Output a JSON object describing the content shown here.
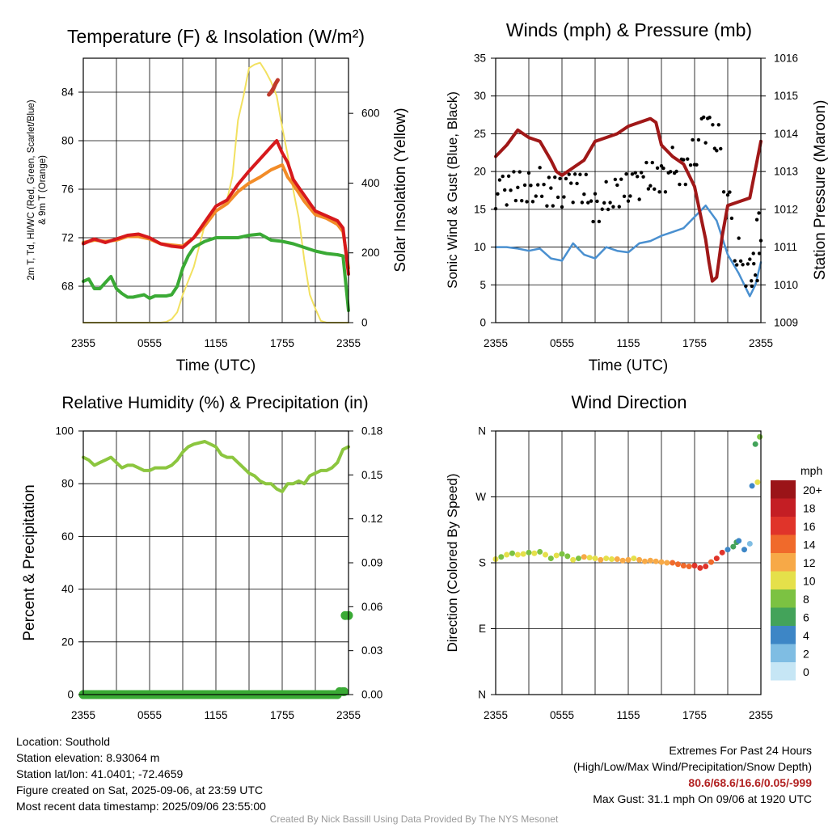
{
  "colors": {
    "t2m": "#d7191c",
    "dewpoint": "#3aaa35",
    "heat_index": "#c0392b",
    "t9m": "#f28c28",
    "solar": "#f2e160",
    "wind": "#4a90d0",
    "gust": "#000000",
    "pressure": "#a01818",
    "rh": "#8cc63f",
    "precip": "#3aaa35"
  },
  "chart_data": [
    {
      "id": "temp",
      "type": "line",
      "title": "Temperature (F) & Insolation (W/m²)",
      "xlabel": "Time (UTC)",
      "ylabel": "2m T, T_d, HI/WC (Red, Green, Scarlet/Blue) & 9m T (Orange)",
      "ylabel_lines": [
        "2m T, Td, HI/WC (Red, Green, Scarlet/Blue)",
        "& 9m T (Orange)"
      ],
      "ylabel_right": "Solar Insolation (Yellow)",
      "x_ticks": [
        "2355",
        "0555",
        "1155",
        "1755",
        "2355"
      ],
      "xlim": [
        0,
        24
      ],
      "ylim": [
        65,
        86.8
      ],
      "y_ticks": [
        68,
        72,
        76,
        80,
        84
      ],
      "ylim_right": [
        0,
        758
      ],
      "y_ticks_right": [
        0,
        200,
        400,
        600
      ],
      "series": [
        {
          "key": "solar",
          "axis": "right",
          "x": [
            0,
            7,
            7.5,
            8,
            8.5,
            9,
            10,
            10.5,
            11,
            11.5,
            12,
            12.5,
            13,
            13.5,
            14,
            14.5,
            15,
            15.5,
            16,
            16.5,
            17,
            17.5,
            18,
            18.5,
            19,
            19.5,
            20,
            20.5,
            21,
            21.5,
            22,
            24
          ],
          "y": [
            0,
            0,
            2,
            10,
            30,
            80,
            160,
            220,
            280,
            300,
            320,
            330,
            350,
            420,
            580,
            650,
            730,
            740,
            745,
            720,
            690,
            650,
            560,
            480,
            380,
            300,
            180,
            80,
            40,
            5,
            0,
            0
          ]
        },
        {
          "key": "t9m",
          "axis": "left",
          "x": [
            0,
            1,
            2,
            3,
            4,
            5,
            6,
            7,
            8,
            9,
            10,
            11,
            12,
            13,
            14,
            15,
            16,
            17,
            18,
            18.5,
            19,
            20,
            21,
            22,
            23,
            23.5,
            24
          ],
          "y": [
            71.6,
            71.8,
            71.7,
            71.8,
            72.1,
            72.1,
            71.9,
            71.5,
            71.4,
            71.3,
            72,
            73,
            74.2,
            74.8,
            75.8,
            76.5,
            77,
            77.6,
            78,
            77,
            76.4,
            75,
            73.9,
            73.6,
            73.1,
            72.5,
            69.5
          ]
        },
        {
          "key": "t2m",
          "axis": "left",
          "x": [
            0,
            1,
            2,
            3,
            4,
            5,
            6,
            7,
            8,
            9,
            10,
            11,
            12,
            13,
            14,
            15,
            16,
            16.5,
            17,
            17.5,
            18,
            18.5,
            19,
            20,
            21,
            22,
            23,
            23.5,
            24
          ],
          "y": [
            71.5,
            71.9,
            71.6,
            71.9,
            72.2,
            72.3,
            72,
            71.5,
            71.3,
            71.2,
            72,
            73.3,
            74.6,
            75.1,
            76.4,
            77.5,
            78.5,
            79,
            79.5,
            80,
            79,
            78.2,
            76.8,
            75.5,
            74.2,
            73.8,
            73.4,
            72.8,
            69
          ]
        },
        {
          "key": "heat_index",
          "axis": "left",
          "x": [
            16.8,
            17,
            17.2,
            17.4,
            17.6
          ],
          "y": [
            83.8,
            84,
            84.3,
            84.7,
            85
          ]
        },
        {
          "key": "dewpoint",
          "axis": "left",
          "x": [
            0,
            0.5,
            1,
            1.5,
            2,
            2.5,
            3,
            3.5,
            4,
            4.5,
            5,
            5.5,
            6,
            6.5,
            7,
            7.5,
            8,
            8.5,
            9,
            9.5,
            10,
            11,
            12,
            13,
            14,
            15,
            16,
            17,
            18,
            19,
            20,
            21,
            22,
            23,
            23.5,
            24
          ],
          "y": [
            68.4,
            68.6,
            67.8,
            67.8,
            68.3,
            68.8,
            67.8,
            67.4,
            67.1,
            67.1,
            67.2,
            67.3,
            67,
            67.2,
            67.2,
            67.2,
            67.3,
            68,
            69.5,
            70.5,
            71.2,
            71.7,
            72,
            72,
            72,
            72.2,
            72.3,
            71.8,
            71.7,
            71.5,
            71.2,
            70.9,
            70.7,
            70.6,
            70.5,
            66
          ]
        }
      ]
    },
    {
      "id": "wind",
      "type": "line",
      "title": "Winds (mph) & Pressure (mb)",
      "xlabel": "Time (UTC)",
      "ylabel": "Sonic Wind & Gust (Blue, Black)",
      "ylabel_right": "Station Pressure (Maroon)",
      "x_ticks": [
        "2355",
        "0555",
        "1155",
        "1755",
        "2355"
      ],
      "xlim": [
        0,
        24
      ],
      "ylim": [
        0,
        35
      ],
      "y_ticks": [
        0,
        5,
        10,
        15,
        20,
        25,
        30,
        35
      ],
      "ylim_right": [
        1009,
        1016
      ],
      "y_ticks_right": [
        1009,
        1010,
        1011,
        1012,
        1013,
        1014,
        1015,
        1016
      ],
      "series": [
        {
          "key": "wind",
          "axis": "left",
          "x": [
            0,
            1,
            2,
            3,
            4,
            5,
            6,
            7,
            8,
            9,
            10,
            11,
            12,
            13,
            14,
            15,
            16,
            17,
            18,
            19,
            20,
            21,
            22,
            23,
            23.5,
            24
          ],
          "y": [
            10,
            10,
            9.8,
            9.5,
            9.8,
            8.5,
            8.2,
            10.5,
            9,
            8.5,
            10,
            9.5,
            9.3,
            10.5,
            10.8,
            11.5,
            12,
            12.5,
            14,
            15.5,
            13.5,
            9,
            6.5,
            3.5,
            5,
            8
          ]
        },
        {
          "key": "gust",
          "axis": "left",
          "x": [
            0,
            1,
            2,
            3,
            4,
            5,
            6,
            7,
            8,
            9,
            10,
            11,
            12,
            13,
            14,
            15,
            16,
            17,
            18,
            19,
            20,
            21,
            22,
            23,
            23.5,
            24
          ],
          "y": [
            17,
            17.5,
            18,
            18,
            18.5,
            17.5,
            17,
            18,
            17.5,
            15.5,
            16.5,
            17.5,
            17.5,
            18.5,
            19,
            19.5,
            21,
            20.5,
            22,
            26,
            24,
            16,
            9,
            7,
            7,
            13
          ],
          "style": "dots"
        },
        {
          "key": "pressure",
          "axis": "right",
          "x": [
            0,
            1,
            2,
            3,
            4,
            5,
            5.5,
            6,
            7,
            8,
            9,
            10,
            11,
            12,
            13,
            14,
            14.5,
            15,
            16,
            17,
            17.5,
            18,
            18.5,
            19,
            19.3,
            19.6,
            20,
            20.5,
            21,
            22,
            23,
            24
          ],
          "y": [
            1013.4,
            1013.7,
            1014.1,
            1013.9,
            1013.8,
            1013.3,
            1013,
            1012.9,
            1013.1,
            1013.3,
            1013.8,
            1013.9,
            1014,
            1014.2,
            1014.3,
            1014.4,
            1014.3,
            1013.7,
            1013.4,
            1013.2,
            1012.9,
            1012.6,
            1011.9,
            1011.2,
            1010.6,
            1010.1,
            1010.2,
            1011.3,
            1012.1,
            1012.2,
            1012.3,
            1013.8
          ]
        }
      ]
    },
    {
      "id": "rh",
      "type": "line",
      "title": "Relative Humidity (%) & Precipitation (in)",
      "xlabel": "",
      "ylabel": "Percent & Precipitation",
      "x_ticks": [
        "2355",
        "0555",
        "1155",
        "1755",
        "2355"
      ],
      "xlim": [
        0,
        24
      ],
      "ylim": [
        0,
        100
      ],
      "y_ticks": [
        0,
        20,
        40,
        60,
        80,
        100
      ],
      "ylim_right": [
        0,
        0.18
      ],
      "y_ticks_right": [
        "0.00",
        "0.03",
        "0.06",
        "0.09",
        "0.12",
        "0.15",
        "0.18"
      ],
      "series": [
        {
          "key": "rh",
          "axis": "left",
          "x": [
            0,
            0.5,
            1,
            1.5,
            2,
            2.5,
            3,
            3.5,
            4,
            4.5,
            5,
            5.5,
            6,
            6.5,
            7,
            7.5,
            8,
            8.5,
            9,
            9.5,
            10,
            11,
            12,
            12.5,
            13,
            13.5,
            14,
            14.5,
            15,
            15.5,
            16,
            16.5,
            17,
            17.5,
            18,
            18.5,
            19,
            19.5,
            20,
            20.5,
            21,
            21.5,
            22,
            22.5,
            23,
            23.5,
            24
          ],
          "y": [
            90,
            89,
            87,
            88,
            89,
            90,
            88,
            86,
            87,
            87,
            86,
            85,
            85,
            86,
            86,
            86,
            87,
            89,
            92,
            94,
            95,
            96,
            94,
            91,
            90,
            90,
            88,
            86,
            84,
            83,
            81,
            80,
            80,
            78,
            77,
            80,
            80,
            81,
            80,
            83,
            84,
            85,
            85,
            86,
            88,
            93,
            94
          ]
        },
        {
          "key": "precip",
          "axis": "right",
          "x": [
            0,
            23,
            23.2,
            23.5,
            23.6,
            23.7,
            24
          ],
          "y": [
            0,
            0,
            0.002,
            0.002,
            0.002,
            0.054,
            0.054
          ]
        }
      ]
    },
    {
      "id": "dir",
      "type": "scatter",
      "title": "Wind Direction",
      "ylabel": "Direction (Colored By Speed)",
      "x_ticks": [
        "2355",
        "0555",
        "1155",
        "1755",
        "2355"
      ],
      "xlim": [
        0,
        24
      ],
      "ylim": [
        0,
        360
      ],
      "y_ticks": [
        "N",
        "E",
        "S",
        "W",
        "N"
      ],
      "legend_title": "mph",
      "legend_labels": [
        "0",
        "2",
        "4",
        "6",
        "8",
        "10",
        "12",
        "14",
        "16",
        "18",
        "20+"
      ],
      "legend_colors": [
        "#c6e6f5",
        "#7fbde3",
        "#3d86c6",
        "#43a35a",
        "#7cc242",
        "#e5e04a",
        "#f7a947",
        "#f06a2b",
        "#e0342a",
        "#c41e24",
        "#9b1418"
      ],
      "points": {
        "x": [
          0,
          0.5,
          1,
          1.5,
          2,
          2.5,
          3,
          3.5,
          4,
          4.5,
          5,
          5.5,
          6,
          6.5,
          7,
          7.5,
          8,
          8.5,
          9,
          9.5,
          10,
          10.5,
          11,
          11.5,
          12,
          12.5,
          13,
          13.5,
          14,
          14.5,
          15,
          15.5,
          16,
          16.5,
          17,
          17.5,
          18,
          18.5,
          19,
          19.5,
          20,
          20.5,
          21,
          21.5,
          21.8,
          22,
          22.5,
          23,
          23.2,
          23.5,
          23.7,
          23.9
        ],
        "y": [
          185,
          188,
          191,
          193,
          191,
          192,
          194,
          193,
          195,
          191,
          186,
          190,
          192,
          189,
          184,
          186,
          188,
          187,
          186,
          184,
          186,
          185,
          185,
          183,
          184,
          186,
          184,
          182,
          183,
          182,
          181,
          180,
          180,
          178,
          176,
          175,
          176,
          173,
          175,
          181,
          186,
          194,
          198,
          202,
          208,
          210,
          198,
          206,
          285,
          342,
          290,
          352
        ],
        "speed": [
          10,
          9,
          10,
          9,
          10,
          10,
          8,
          10,
          9,
          10,
          8,
          10,
          8,
          9,
          10,
          9,
          12,
          10,
          11,
          12,
          11,
          11,
          12,
          12,
          12,
          11,
          12,
          13,
          12,
          13,
          12,
          13,
          14,
          14,
          15,
          15,
          17,
          16,
          16,
          15,
          16,
          17,
          5,
          6,
          7,
          5,
          4,
          3,
          5,
          7,
          10,
          9
        ]
      }
    }
  ],
  "footer": {
    "location": "Location: Southold",
    "elevation": "Station elevation: 8.93064 m",
    "latlon": "Station lat/lon: 41.0401; -72.4659",
    "created": "Figure created on Sat, 2025-09-06, at 23:59 UTC",
    "recent": "Most recent data timestamp: 2025/09/06 23:55:00",
    "extremes_title": "Extremes For Past 24 Hours",
    "extremes_sub": "(High/Low/Max Wind/Precipitation/Snow Depth)",
    "extremes_values": "80.6/68.6/16.6/0.05/-999",
    "max_gust": "Max Gust: 31.1 mph On 09/06 at 1920 UTC",
    "credit": "Created By Nick Bassill Using Data Provided By The NYS Mesonet"
  }
}
